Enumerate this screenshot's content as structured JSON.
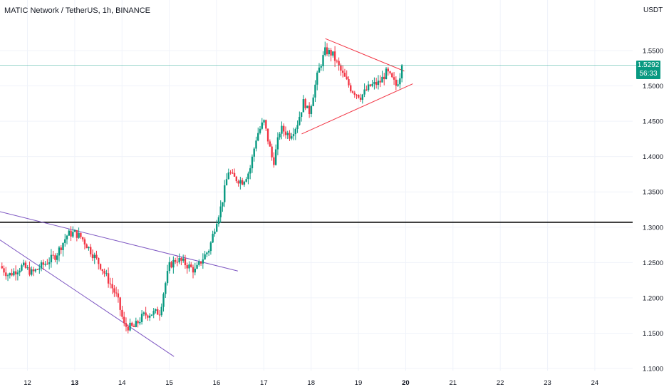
{
  "header": {
    "title": "MATIC Network / TetherUS, 1h, BINANCE"
  },
  "price_axis": {
    "currency": "USDT"
  },
  "last_price": {
    "value": "1.5292",
    "countdown": "56:33"
  },
  "colors": {
    "up": "#089981",
    "down": "#f23645",
    "channel_line": "#7e57c2",
    "triangle_line": "#f23645",
    "horizontal_level": "#000000",
    "grid": "#f0f3fa",
    "axis_text": "#131722"
  },
  "chart_data": {
    "type": "candlestick",
    "title": "MATIC Network / TetherUS, 1h, BINANCE",
    "ylabel": "USDT",
    "ylim": [
      1.095,
      1.62
    ],
    "y_ticks": [
      "1.1000",
      "1.1500",
      "1.2000",
      "1.2500",
      "1.3000",
      "1.3500",
      "1.4000",
      "1.4500",
      "1.5000",
      "1.5500"
    ],
    "y_tick_values": [
      1.1,
      1.15,
      1.2,
      1.25,
      1.3,
      1.35,
      1.4,
      1.45,
      1.5,
      1.55
    ],
    "x_ticks": [
      "12",
      "13",
      "14",
      "15",
      "16",
      "17",
      "18",
      "19",
      "20",
      "21",
      "22",
      "23",
      "24"
    ],
    "x_tick_days": [
      12,
      13,
      14,
      15,
      16,
      17,
      18,
      19,
      20,
      21,
      22,
      23,
      24
    ],
    "xlim_days": [
      11.42,
      24.8
    ],
    "grid": true,
    "horizontal_levels": [
      1.307
    ],
    "trendlines": [
      {
        "name": "channel-upper",
        "from": [
          11.42,
          1.322
        ],
        "to": [
          16.45,
          1.238
        ]
      },
      {
        "name": "channel-lower",
        "from": [
          11.42,
          1.282
        ],
        "to": [
          15.1,
          1.117
        ]
      },
      {
        "name": "triangle-upper",
        "from": [
          18.3,
          1.567
        ],
        "to": [
          19.97,
          1.521
        ]
      },
      {
        "name": "triangle-lower",
        "from": [
          17.8,
          1.432
        ],
        "to": [
          20.15,
          1.503
        ]
      }
    ],
    "price_anchors": [
      [
        11.42,
        1.245
      ],
      [
        11.6,
        1.232
      ],
      [
        11.9,
        1.245
      ],
      [
        12.1,
        1.235
      ],
      [
        12.4,
        1.25
      ],
      [
        12.6,
        1.26
      ],
      [
        12.85,
        1.29
      ],
      [
        13.0,
        1.292
      ],
      [
        13.15,
        1.285
      ],
      [
        13.3,
        1.27
      ],
      [
        13.55,
        1.245
      ],
      [
        13.75,
        1.22
      ],
      [
        13.9,
        1.2
      ],
      [
        14.05,
        1.16
      ],
      [
        14.25,
        1.158
      ],
      [
        14.45,
        1.175
      ],
      [
        14.6,
        1.178
      ],
      [
        14.8,
        1.18
      ],
      [
        14.9,
        1.215
      ],
      [
        15.0,
        1.245
      ],
      [
        15.15,
        1.255
      ],
      [
        15.3,
        1.25
      ],
      [
        15.55,
        1.238
      ],
      [
        15.7,
        1.255
      ],
      [
        15.85,
        1.27
      ],
      [
        16.0,
        1.31
      ],
      [
        16.1,
        1.33
      ],
      [
        16.25,
        1.38
      ],
      [
        16.35,
        1.37
      ],
      [
        16.55,
        1.365
      ],
      [
        16.7,
        1.38
      ],
      [
        16.85,
        1.43
      ],
      [
        17.0,
        1.45
      ],
      [
        17.1,
        1.42
      ],
      [
        17.2,
        1.39
      ],
      [
        17.35,
        1.44
      ],
      [
        17.55,
        1.43
      ],
      [
        17.7,
        1.445
      ],
      [
        17.85,
        1.48
      ],
      [
        17.95,
        1.46
      ],
      [
        18.05,
        1.49
      ],
      [
        18.15,
        1.52
      ],
      [
        18.3,
        1.55
      ],
      [
        18.45,
        1.545
      ],
      [
        18.65,
        1.518
      ],
      [
        18.85,
        1.495
      ],
      [
        19.05,
        1.485
      ],
      [
        19.25,
        1.5
      ],
      [
        19.45,
        1.505
      ],
      [
        19.6,
        1.52
      ],
      [
        19.8,
        1.5
      ],
      [
        19.95,
        1.529
      ]
    ]
  }
}
